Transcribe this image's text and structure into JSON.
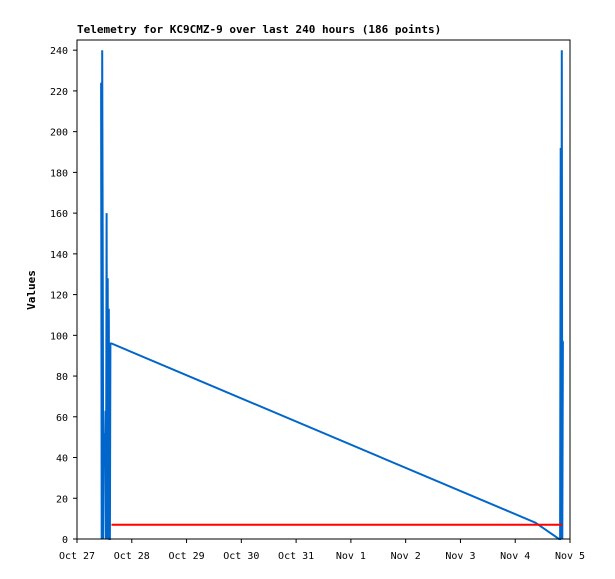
{
  "chart_data": {
    "type": "line",
    "title": "Telemetry for KC9CMZ-9 over last 240 hours (186 points)",
    "xlabel": "",
    "ylabel": "Values",
    "x_tick_labels": [
      "Oct 27",
      "Oct 28",
      "Oct 29",
      "Oct 30",
      "Oct 31",
      "Nov 1",
      "Nov 2",
      "Nov 3",
      "Nov 4",
      "Nov 5"
    ],
    "y_ticks": [
      0,
      20,
      40,
      60,
      80,
      100,
      120,
      140,
      160,
      180,
      200,
      220,
      240
    ],
    "xlim_days": [
      0,
      9
    ],
    "ylim": [
      0,
      245
    ],
    "grid": false,
    "series": [
      {
        "color": "#0066cc",
        "x": [
          0.44,
          0.45,
          0.46,
          0.47,
          0.48,
          0.49,
          0.5,
          0.51,
          0.52,
          0.53,
          0.54,
          0.55,
          0.56,
          0.57,
          0.58,
          0.59,
          0.6,
          0.61,
          0.62,
          0.63,
          8.37,
          8.8,
          8.82,
          8.83,
          8.84,
          8.85,
          8.86,
          8.87,
          8.88
        ],
        "y": [
          224,
          0,
          240,
          145,
          0,
          44,
          52,
          37,
          63,
          0,
          160,
          0,
          128,
          0,
          113,
          0,
          0,
          96,
          96,
          96,
          8,
          0,
          0,
          192,
          0,
          240,
          0,
          97,
          97
        ]
      },
      {
        "color": "#ff0000",
        "x": [
          0.63,
          8.86
        ],
        "y": [
          7,
          7
        ]
      }
    ]
  }
}
